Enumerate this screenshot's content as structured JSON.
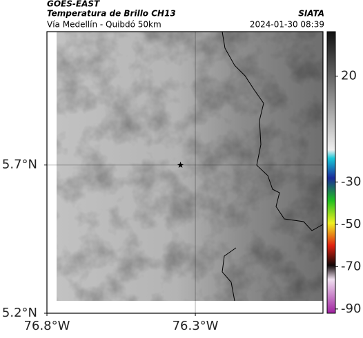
{
  "header": {
    "satellite": "GOES-EAST",
    "product": "Temperatura de Brillo CH13",
    "org": "SIATA",
    "region": "Vía Medellín - Quibdó 50km",
    "timestamp": "2024-01-30 08:39"
  },
  "map": {
    "xlim": [
      -76.8,
      -75.87
    ],
    "ylim": [
      5.2,
      6.15
    ],
    "xticks": [
      {
        "value": -76.8,
        "label": "76.8°W"
      },
      {
        "value": -76.3,
        "label": "76.3°W"
      }
    ],
    "yticks": [
      {
        "value": 5.7,
        "label": "5.7°N"
      },
      {
        "value": 5.2,
        "label": "5.2°N"
      }
    ],
    "grid": true,
    "station": {
      "x": -76.35,
      "y": 5.7
    }
  },
  "colorbar": {
    "lim": [
      -92,
      41
    ],
    "ticks": [
      20,
      -30,
      -50,
      -70,
      -90
    ]
  }
}
